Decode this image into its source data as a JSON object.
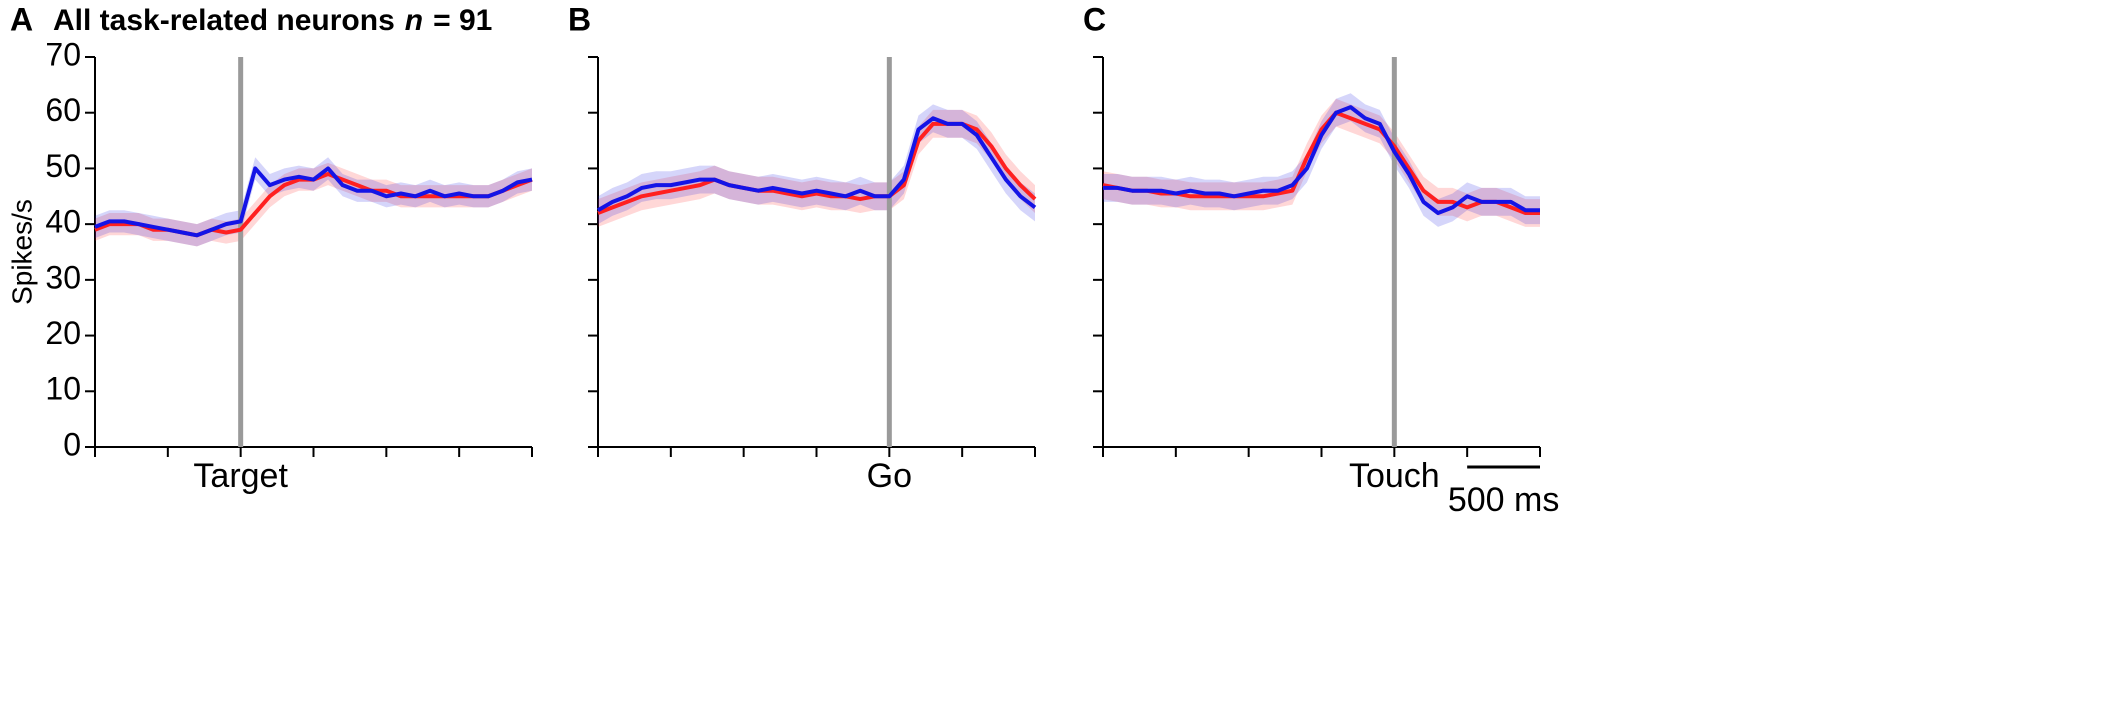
{
  "chart_data": [
    {
      "type": "line",
      "panel_label": "A",
      "title": "All task-related neurons",
      "title_n_symbol": "n",
      "title_n_value": "= 91",
      "ylabel": "Spikes/s",
      "ylim": [
        0,
        70
      ],
      "yticks": [
        0,
        10,
        20,
        30,
        40,
        50,
        60,
        70
      ],
      "ytick_labels": true,
      "xlim": [
        -1000,
        2000
      ],
      "xticks": [
        -1000,
        -500,
        0,
        500,
        1000,
        1500,
        2000
      ],
      "event_x": 0,
      "event_label": "Target",
      "event_color": "#9a9a9a",
      "x": [
        -1000,
        -900,
        -800,
        -700,
        -600,
        -500,
        -400,
        -300,
        -200,
        -100,
        0,
        100,
        200,
        300,
        400,
        500,
        600,
        700,
        800,
        900,
        1000,
        1100,
        1200,
        1300,
        1400,
        1500,
        1600,
        1700,
        1800,
        1900,
        2000
      ],
      "series": [
        {
          "color": "#ff2020",
          "error": 2,
          "values": [
            39,
            40,
            40,
            40,
            39,
            39,
            38.5,
            38,
            39,
            38.5,
            39,
            42,
            45,
            47,
            48,
            48,
            49,
            48,
            47,
            46,
            46,
            45,
            45,
            45,
            45,
            45,
            45,
            45,
            46,
            47,
            48
          ]
        },
        {
          "color": "#1414e6",
          "error": 2,
          "values": [
            39.5,
            40.5,
            40.5,
            40,
            39.5,
            39,
            38.5,
            38,
            39,
            40,
            40.5,
            50,
            47,
            48,
            48.5,
            48,
            50,
            47,
            46,
            46,
            45,
            45.5,
            45,
            46,
            45,
            45.5,
            45,
            45,
            46,
            47.5,
            48
          ]
        }
      ]
    },
    {
      "type": "line",
      "panel_label": "B",
      "ylim": [
        0,
        70
      ],
      "yticks": [
        0,
        10,
        20,
        30,
        40,
        50,
        60,
        70
      ],
      "ytick_labels": false,
      "xlim": [
        -2000,
        1000
      ],
      "xticks": [
        -2000,
        -1500,
        -1000,
        -500,
        0,
        500,
        1000
      ],
      "event_x": 0,
      "event_label": "Go",
      "event_color": "#9a9a9a",
      "x": [
        -2000,
        -1900,
        -1800,
        -1700,
        -1600,
        -1500,
        -1400,
        -1300,
        -1200,
        -1100,
        -1000,
        -900,
        -800,
        -700,
        -600,
        -500,
        -400,
        -300,
        -200,
        -100,
        0,
        100,
        200,
        300,
        400,
        500,
        600,
        700,
        800,
        900,
        1000
      ],
      "series": [
        {
          "color": "#ff2020",
          "error": 2.5,
          "values": [
            42,
            43,
            44,
            45,
            45.5,
            46,
            46.5,
            47,
            48,
            47,
            46.5,
            46,
            46,
            45.5,
            45,
            45.5,
            45,
            45,
            44.5,
            45,
            45,
            47,
            55,
            58,
            58,
            58,
            57,
            54,
            50,
            47,
            44.5
          ]
        },
        {
          "color": "#1414e6",
          "error": 2.5,
          "values": [
            42.5,
            44,
            45,
            46.5,
            47,
            47,
            47.5,
            48,
            48,
            47,
            46.5,
            46,
            46.5,
            46,
            45.5,
            46,
            45.5,
            45,
            46,
            45,
            45,
            48,
            57,
            59,
            58,
            58,
            56,
            52,
            48,
            45,
            43
          ]
        }
      ]
    },
    {
      "type": "line",
      "panel_label": "C",
      "ylim": [
        0,
        70
      ],
      "yticks": [
        0,
        10,
        20,
        30,
        40,
        50,
        60,
        70
      ],
      "ytick_labels": false,
      "xlim": [
        -2000,
        1000
      ],
      "xticks": [
        -2000,
        -1500,
        -1000,
        -500,
        0,
        500,
        1000
      ],
      "event_x": 0,
      "event_label": "Touch",
      "event_color": "#9a9a9a",
      "scalebar": {
        "value": 500,
        "label": "500 ms"
      },
      "x": [
        -2000,
        -1900,
        -1800,
        -1700,
        -1600,
        -1500,
        -1400,
        -1300,
        -1200,
        -1100,
        -1000,
        -900,
        -800,
        -700,
        -600,
        -500,
        -400,
        -300,
        -200,
        -100,
        0,
        100,
        200,
        300,
        400,
        500,
        600,
        700,
        800,
        900,
        1000
      ],
      "series": [
        {
          "color": "#ff2020",
          "error": 2.5,
          "values": [
            47,
            46.5,
            46,
            46,
            45.5,
            45.5,
            45,
            45,
            45,
            45,
            45,
            45,
            45.5,
            46,
            52,
            57,
            60,
            59,
            58,
            57,
            54,
            50,
            46,
            44,
            44,
            43,
            44,
            44,
            43,
            42,
            42
          ]
        },
        {
          "color": "#1414e6",
          "error": 2.5,
          "values": [
            46.5,
            46.5,
            46,
            46,
            46,
            45.5,
            46,
            45.5,
            45.5,
            45,
            45.5,
            46,
            46,
            47,
            50,
            56,
            60,
            61,
            59,
            58,
            53,
            49,
            44,
            42,
            43,
            45,
            44,
            44,
            44,
            42.5,
            42.5
          ]
        }
      ]
    }
  ]
}
